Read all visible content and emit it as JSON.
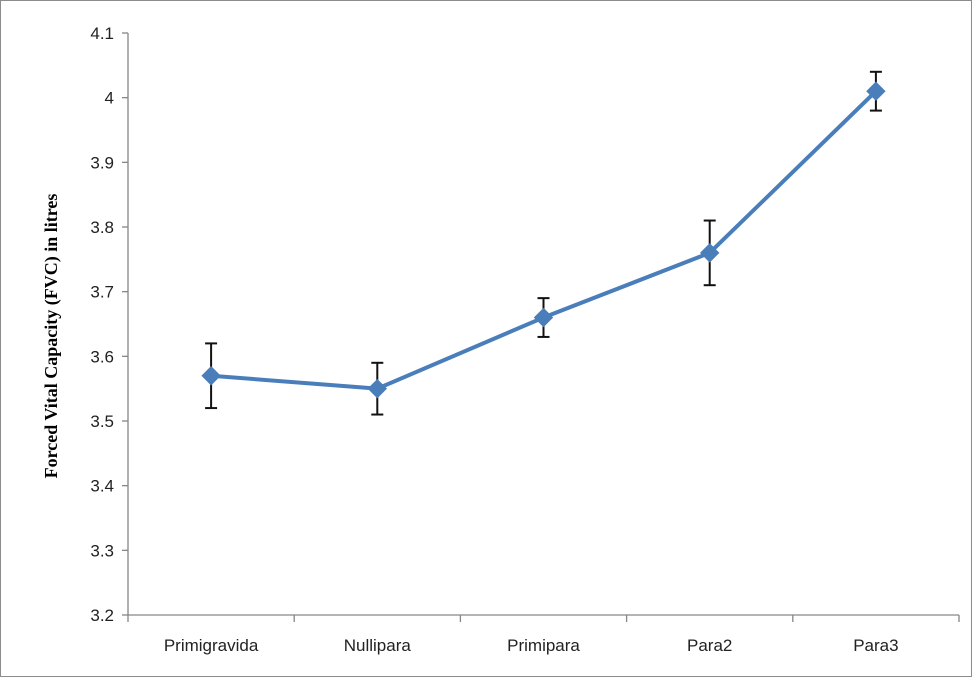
{
  "chart_data": {
    "type": "line",
    "title": "",
    "xlabel": "",
    "ylabel": "Forced Vital Capacity (FVC) in litres",
    "categories": [
      "Primigravida",
      "Nullipara",
      "Primipara",
      "Para2",
      "Para3"
    ],
    "series": [
      {
        "values": [
          3.57,
          3.55,
          3.66,
          3.76,
          4.01
        ],
        "error_low": [
          3.52,
          3.51,
          3.63,
          3.71,
          3.98
        ],
        "error_high": [
          3.62,
          3.59,
          3.69,
          3.81,
          4.04
        ],
        "color": "#4a7ebb",
        "marker": "diamond"
      }
    ],
    "ylim": [
      3.2,
      4.1
    ],
    "yticks": [
      "3.2",
      "3.3",
      "3.4",
      "3.5",
      "3.6",
      "3.7",
      "3.8",
      "3.9",
      "4",
      "4.1"
    ],
    "grid": false,
    "legend": "none"
  }
}
